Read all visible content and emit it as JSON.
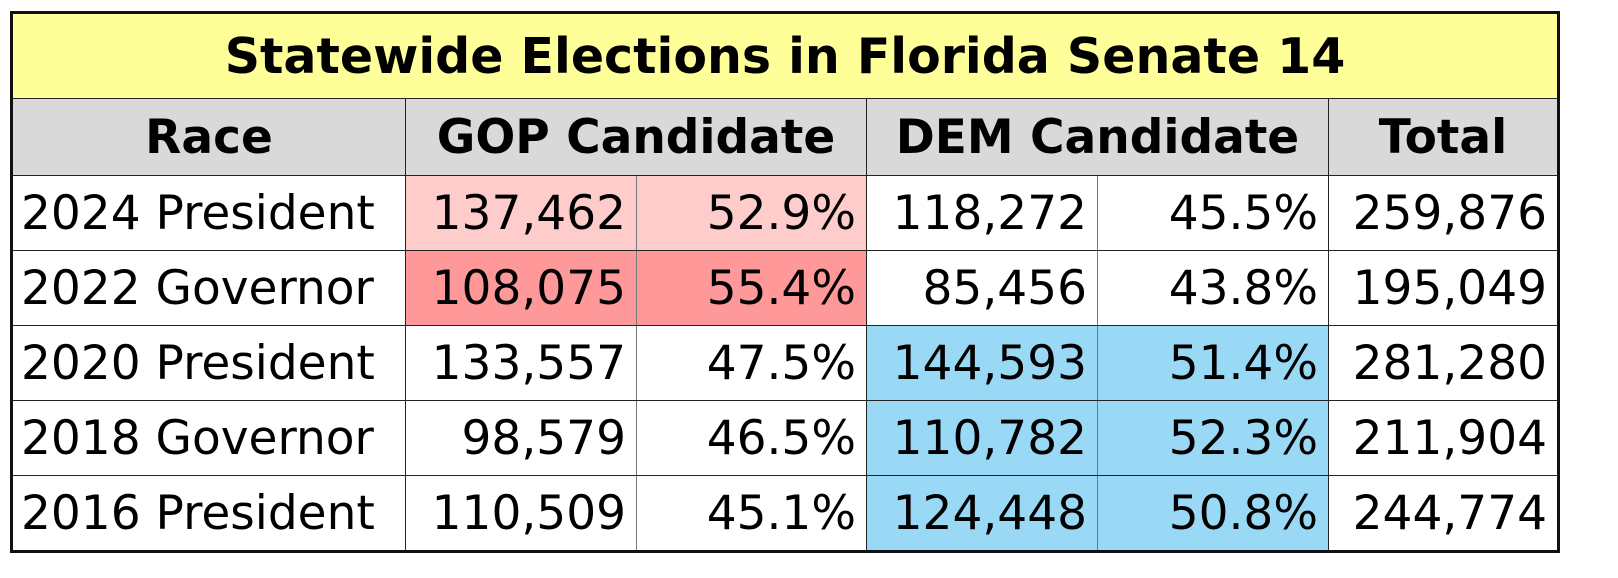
{
  "title": "Statewide Elections in Florida Senate 14",
  "headers": {
    "race": "Race",
    "gop": "GOP Candidate",
    "dem": "DEM Candidate",
    "total": "Total"
  },
  "colors": {
    "title_bg": "#ffff99",
    "header_bg": "#d9d9d9",
    "gop_light": "#ffcccc",
    "gop_strong": "#ff9999",
    "dem_fill": "#99d9f5",
    "plain": "#ffffff"
  },
  "rows": [
    {
      "race": "2024 President",
      "gop_votes": "137,462",
      "gop_pct": "52.9%",
      "dem_votes": "118,272",
      "dem_pct": "45.5%",
      "total": "259,876",
      "gop_fill": "#ffcccc",
      "dem_fill": "#ffffff"
    },
    {
      "race": "2022 Governor",
      "gop_votes": "108,075",
      "gop_pct": "55.4%",
      "dem_votes": "85,456",
      "dem_pct": "43.8%",
      "total": "195,049",
      "gop_fill": "#ff9999",
      "dem_fill": "#ffffff"
    },
    {
      "race": "2020 President",
      "gop_votes": "133,557",
      "gop_pct": "47.5%",
      "dem_votes": "144,593",
      "dem_pct": "51.4%",
      "total": "281,280",
      "gop_fill": "#ffffff",
      "dem_fill": "#99d9f5"
    },
    {
      "race": "2018 Governor",
      "gop_votes": "98,579",
      "gop_pct": "46.5%",
      "dem_votes": "110,782",
      "dem_pct": "52.3%",
      "total": "211,904",
      "gop_fill": "#ffffff",
      "dem_fill": "#99d9f5"
    },
    {
      "race": "2016 President",
      "gop_votes": "110,509",
      "gop_pct": "45.1%",
      "dem_votes": "124,448",
      "dem_pct": "50.8%",
      "total": "244,774",
      "gop_fill": "#ffffff",
      "dem_fill": "#99d9f5"
    }
  ]
}
